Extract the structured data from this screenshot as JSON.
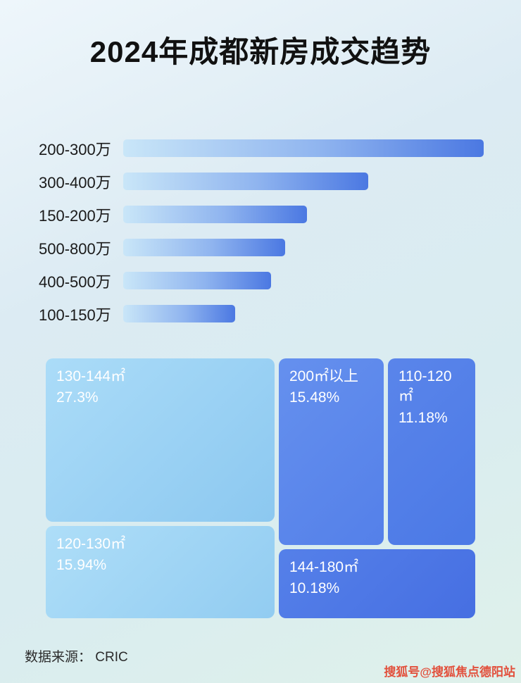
{
  "page": {
    "title": "2024年成都新房成交趋势",
    "source_note": "数据来源： CRIC",
    "watermark": "搜狐号@搜狐焦点德阳站"
  },
  "colors": {
    "bar_gradient_start": "#c9e6f8",
    "bar_gradient_end": "#4b78e2",
    "watermark_color": "#e2503c",
    "title_color": "#111111"
  },
  "chart_data": [
    {
      "type": "bar",
      "orientation": "horizontal",
      "title": "2024年成都新房成交趋势",
      "categories": [
        "200-300万",
        "300-400万",
        "150-200万",
        "500-800万",
        "400-500万",
        "100-150万"
      ],
      "values": [
        100,
        68,
        51,
        45,
        41,
        31
      ],
      "value_note": "relative bar lengths; no numeric axis or data labels shown in image",
      "xlabel": "",
      "ylabel": "",
      "grid": false,
      "legend": false
    },
    {
      "type": "treemap",
      "items": [
        {
          "label": "130-144㎡",
          "pct": "27.3%",
          "value": 27.3,
          "color_start": "#abdcf8",
          "color_end": "#8cc8f0"
        },
        {
          "label": "120-130㎡",
          "pct": "15.94%",
          "value": 15.94,
          "color_start": "#aedef8",
          "color_end": "#92ccf1"
        },
        {
          "label": "200㎡以上",
          "pct": "15.48%",
          "value": 15.48,
          "color_start": "#6590ee",
          "color_end": "#5480e9"
        },
        {
          "label": "110-120㎡",
          "pct": "11.18%",
          "value": 11.18,
          "color_start": "#5a85ea",
          "color_end": "#4b79e6"
        },
        {
          "label": "144-180㎡",
          "pct": "10.18%",
          "value": 10.18,
          "color_start": "#5580e9",
          "color_end": "#466fe2"
        }
      ]
    }
  ]
}
